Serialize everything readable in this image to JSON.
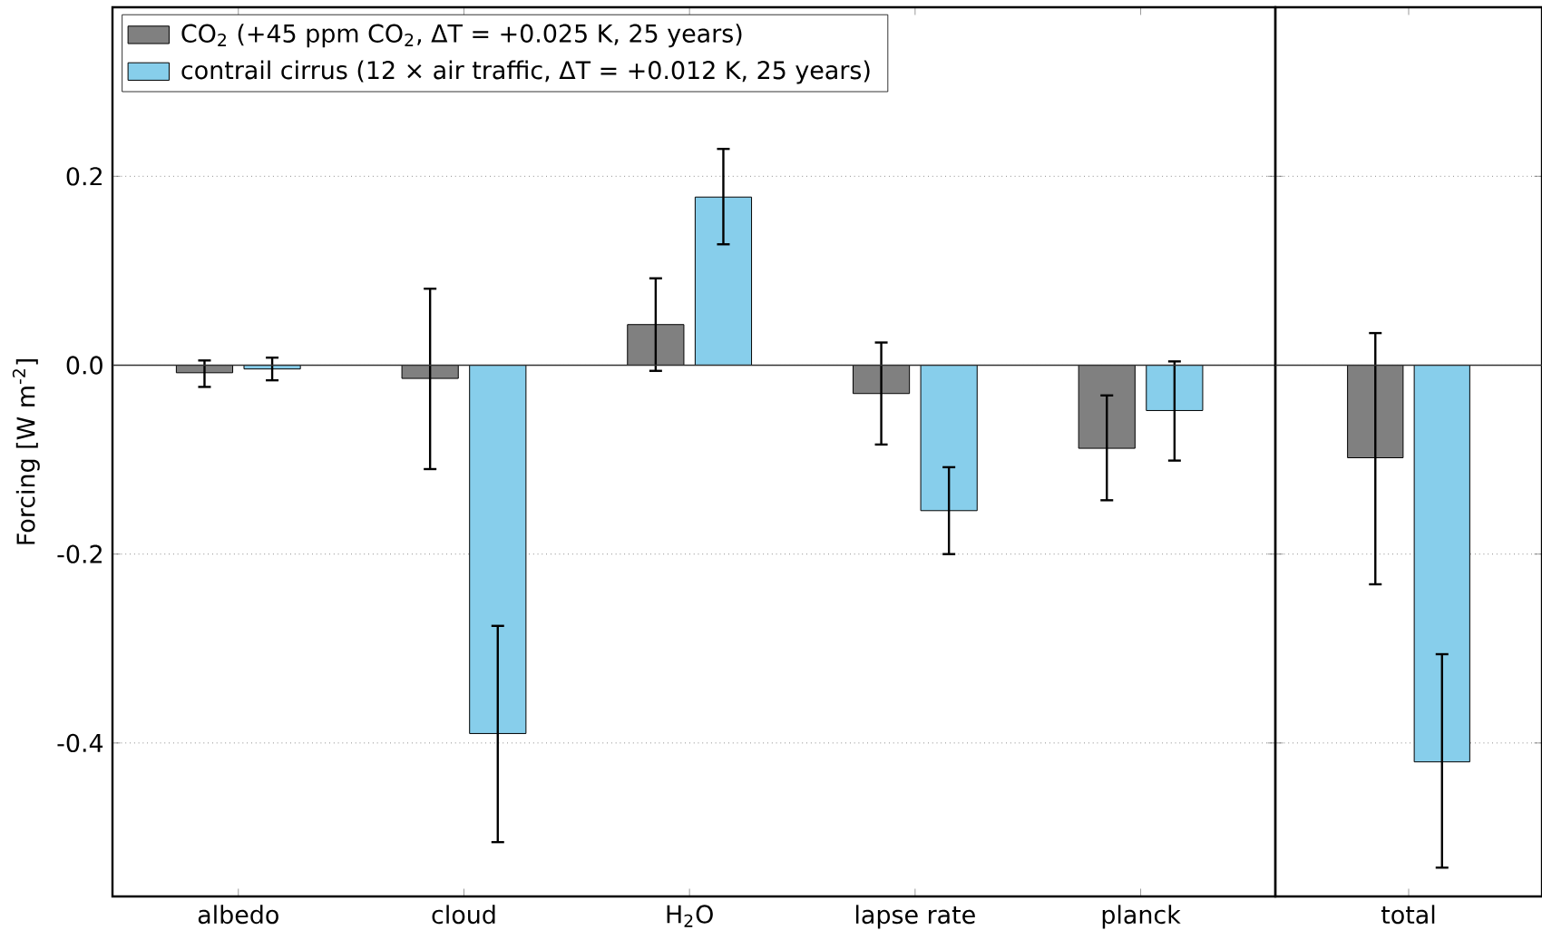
{
  "chart_data": [
    {
      "type": "bar",
      "ylabel": "Forcing [W m$^{-2}$]",
      "categories": [
        "albedo",
        "cloud",
        "H$_{2}$O",
        "lapse rate",
        "planck"
      ],
      "series": [
        {
          "name": "CO$_{2}$ (+45 ppm CO$_{2}$, ΔT = +0.025 K, 25 years)",
          "color": "#808080",
          "values": [
            -0.008,
            -0.014,
            0.043,
            -0.03,
            -0.088
          ],
          "errors": [
            [
              -0.023,
              0.005
            ],
            [
              -0.11,
              0.081
            ],
            [
              -0.006,
              0.092
            ],
            [
              -0.084,
              0.024
            ],
            [
              -0.143,
              -0.032
            ]
          ]
        },
        {
          "name": "contrail cirrus (12 × air traffic, ΔT = +0.012 K, 25 years)",
          "color": "#87ceeb",
          "values": [
            -0.004,
            -0.39,
            0.178,
            -0.154,
            -0.048
          ],
          "errors": [
            [
              -0.016,
              0.008
            ],
            [
              -0.505,
              -0.276
            ],
            [
              0.128,
              0.229
            ],
            [
              -0.2,
              -0.108
            ],
            [
              -0.101,
              0.004
            ]
          ]
        }
      ],
      "ylim": [
        -0.5625,
        0.379
      ],
      "yticks": [
        {
          "value": -0.4,
          "label": "-0.4"
        },
        {
          "value": -0.2,
          "label": "-0.2"
        },
        {
          "value": 0,
          "label": "0.0"
        },
        0.2
      ],
      "grid": "y",
      "legend": "top left",
      "ref_lines": [
        {
          "axis": "y",
          "value": 0
        }
      ]
    },
    {
      "type": "bar",
      "categories": [
        "total"
      ],
      "series": [
        {
          "color": "#808080",
          "values": [
            -0.098
          ],
          "errors": [
            [
              -0.232,
              0.034
            ]
          ]
        },
        {
          "color": "#87ceeb",
          "values": [
            -0.42
          ],
          "errors": [
            [
              -0.532,
              -0.306
            ]
          ]
        }
      ],
      "ylim": [
        -0.5625,
        0.379
      ],
      "yticks": [
        -0.4,
        -0.2,
        0,
        0.2
      ],
      "grid": "y",
      "tick_labels": "x",
      "ref_lines": [
        {
          "axis": "y",
          "value": 0
        }
      ]
    }
  ]
}
